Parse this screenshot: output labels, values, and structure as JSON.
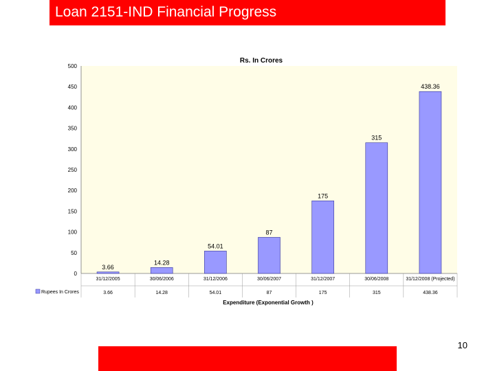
{
  "slide": {
    "title": "Loan 2151-IND Financial Progress",
    "page_number": "10"
  },
  "colors": {
    "title_bar": "#ff0000",
    "footer_bar": "#ff0000",
    "plot_background": "#fffde7",
    "bar_fill": "#9999ff",
    "bar_stroke": "#333399"
  },
  "chart_data": {
    "type": "bar",
    "title": "Rs. In Crores",
    "xlabel": "Expenditure (Exponential Growth )",
    "ylabel": "",
    "ylim": [
      0,
      500
    ],
    "yticks": [
      0,
      50,
      100,
      150,
      200,
      250,
      300,
      350,
      400,
      450,
      500
    ],
    "grid": false,
    "categories": [
      "31/12/2005",
      "30/06/2006",
      "31/12/2006",
      "30/06/2007",
      "31/12/2007",
      "30/06/2008",
      "31/12/2008 (Projected)"
    ],
    "series": [
      {
        "name": "Rupees In Crores",
        "values": [
          3.66,
          14.28,
          54.01,
          87,
          175,
          315,
          438.36
        ],
        "labels": [
          "3.66",
          "14.28",
          "54.01",
          "87",
          "175",
          "315",
          "438.36"
        ],
        "table_values": [
          "3.66",
          "14.28",
          "54.01",
          "87",
          "175",
          "315",
          "438.36"
        ]
      }
    ],
    "legend": "left of data table"
  }
}
